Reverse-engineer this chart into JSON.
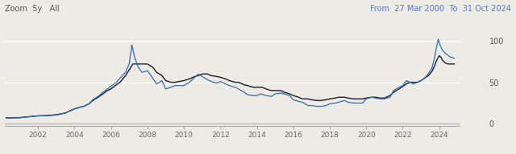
{
  "title_left": "Zoom  5y   All",
  "title_right": "From  27 Mar 2000  To  31 Oct 2024",
  "background_color": "#eeebe5",
  "plot_bg_color": "#eeebe5",
  "line_spot_color": "#2b6cb8",
  "line_longterm_color": "#1a1a2e",
  "ylabel_values": [
    0,
    50,
    100
  ],
  "xlim_years": [
    2000.2,
    2025.1
  ],
  "ylim": [
    -3,
    112
  ],
  "xtick_years": [
    2002,
    2004,
    2006,
    2008,
    2010,
    2012,
    2014,
    2016,
    2018,
    2020,
    2022,
    2024
  ],
  "spot_data": [
    [
      2000.25,
      7
    ],
    [
      2001.0,
      7.2
    ],
    [
      2001.5,
      8.5
    ],
    [
      2002.0,
      9.5
    ],
    [
      2002.5,
      9.8
    ],
    [
      2003.0,
      10.5
    ],
    [
      2003.5,
      13
    ],
    [
      2004.0,
      18
    ],
    [
      2004.3,
      20
    ],
    [
      2004.5,
      21
    ],
    [
      2004.8,
      24
    ],
    [
      2005.0,
      29
    ],
    [
      2005.3,
      33
    ],
    [
      2005.5,
      37
    ],
    [
      2005.8,
      42
    ],
    [
      2006.0,
      45
    ],
    [
      2006.3,
      50
    ],
    [
      2006.5,
      55
    ],
    [
      2006.8,
      62
    ],
    [
      2007.0,
      72
    ],
    [
      2007.15,
      95
    ],
    [
      2007.3,
      80
    ],
    [
      2007.5,
      68
    ],
    [
      2007.7,
      62
    ],
    [
      2008.0,
      64
    ],
    [
      2008.2,
      58
    ],
    [
      2008.5,
      48
    ],
    [
      2008.8,
      52
    ],
    [
      2009.0,
      42
    ],
    [
      2009.3,
      44
    ],
    [
      2009.5,
      46
    ],
    [
      2010.0,
      46
    ],
    [
      2010.3,
      50
    ],
    [
      2010.6,
      56
    ],
    [
      2010.8,
      60
    ],
    [
      2011.0,
      57
    ],
    [
      2011.3,
      53
    ],
    [
      2011.5,
      51
    ],
    [
      2011.8,
      49
    ],
    [
      2012.0,
      51
    ],
    [
      2012.3,
      48
    ],
    [
      2012.5,
      46
    ],
    [
      2012.8,
      44
    ],
    [
      2013.0,
      42
    ],
    [
      2013.3,
      38
    ],
    [
      2013.5,
      35
    ],
    [
      2013.8,
      34
    ],
    [
      2014.0,
      34
    ],
    [
      2014.2,
      36
    ],
    [
      2014.5,
      34
    ],
    [
      2014.8,
      33
    ],
    [
      2015.0,
      36
    ],
    [
      2015.3,
      37
    ],
    [
      2015.5,
      36
    ],
    [
      2015.8,
      34
    ],
    [
      2016.0,
      29
    ],
    [
      2016.3,
      27
    ],
    [
      2016.5,
      26
    ],
    [
      2016.8,
      22
    ],
    [
      2017.0,
      22
    ],
    [
      2017.3,
      21
    ],
    [
      2017.5,
      21
    ],
    [
      2017.8,
      22
    ],
    [
      2018.0,
      24
    ],
    [
      2018.3,
      25
    ],
    [
      2018.5,
      26
    ],
    [
      2018.8,
      28
    ],
    [
      2019.0,
      26
    ],
    [
      2019.3,
      25
    ],
    [
      2019.5,
      25
    ],
    [
      2019.8,
      25
    ],
    [
      2020.0,
      30
    ],
    [
      2020.3,
      32
    ],
    [
      2020.5,
      31
    ],
    [
      2020.8,
      30
    ],
    [
      2021.0,
      30
    ],
    [
      2021.3,
      32
    ],
    [
      2021.5,
      40
    ],
    [
      2021.8,
      44
    ],
    [
      2022.0,
      46
    ],
    [
      2022.2,
      52
    ],
    [
      2022.4,
      50
    ],
    [
      2022.6,
      48
    ],
    [
      2022.8,
      50
    ],
    [
      2023.0,
      52
    ],
    [
      2023.2,
      55
    ],
    [
      2023.4,
      60
    ],
    [
      2023.6,
      67
    ],
    [
      2023.75,
      80
    ],
    [
      2023.85,
      92
    ],
    [
      2023.95,
      102
    ],
    [
      2024.0,
      98
    ],
    [
      2024.1,
      92
    ],
    [
      2024.2,
      88
    ],
    [
      2024.35,
      85
    ],
    [
      2024.5,
      82
    ],
    [
      2024.65,
      80
    ],
    [
      2024.83,
      79
    ]
  ],
  "longterm_data": [
    [
      2000.25,
      7
    ],
    [
      2001.0,
      7.5
    ],
    [
      2001.5,
      8.5
    ],
    [
      2002.0,
      9.5
    ],
    [
      2002.5,
      10
    ],
    [
      2003.0,
      11
    ],
    [
      2003.5,
      13
    ],
    [
      2004.0,
      18
    ],
    [
      2004.3,
      20
    ],
    [
      2004.5,
      21
    ],
    [
      2004.8,
      24
    ],
    [
      2005.0,
      28
    ],
    [
      2005.3,
      32
    ],
    [
      2005.5,
      35
    ],
    [
      2005.8,
      40
    ],
    [
      2006.0,
      42
    ],
    [
      2006.3,
      47
    ],
    [
      2006.5,
      50
    ],
    [
      2006.8,
      58
    ],
    [
      2007.0,
      65
    ],
    [
      2007.2,
      72
    ],
    [
      2007.5,
      72
    ],
    [
      2007.7,
      72
    ],
    [
      2008.0,
      72
    ],
    [
      2008.3,
      68
    ],
    [
      2008.5,
      62
    ],
    [
      2008.8,
      58
    ],
    [
      2009.0,
      52
    ],
    [
      2009.3,
      50
    ],
    [
      2009.5,
      50
    ],
    [
      2010.0,
      52
    ],
    [
      2010.3,
      54
    ],
    [
      2010.6,
      57
    ],
    [
      2010.8,
      58
    ],
    [
      2011.0,
      60
    ],
    [
      2011.3,
      60
    ],
    [
      2011.5,
      58
    ],
    [
      2011.8,
      57
    ],
    [
      2012.0,
      56
    ],
    [
      2012.3,
      54
    ],
    [
      2012.5,
      52
    ],
    [
      2012.8,
      50
    ],
    [
      2013.0,
      50
    ],
    [
      2013.3,
      47
    ],
    [
      2013.5,
      46
    ],
    [
      2013.8,
      44
    ],
    [
      2014.0,
      44
    ],
    [
      2014.3,
      44
    ],
    [
      2014.5,
      42
    ],
    [
      2014.8,
      40
    ],
    [
      2015.0,
      40
    ],
    [
      2015.3,
      40
    ],
    [
      2015.5,
      38
    ],
    [
      2015.8,
      36
    ],
    [
      2016.0,
      34
    ],
    [
      2016.3,
      32
    ],
    [
      2016.5,
      30
    ],
    [
      2016.8,
      30
    ],
    [
      2017.0,
      29
    ],
    [
      2017.3,
      28
    ],
    [
      2017.5,
      28
    ],
    [
      2017.8,
      29
    ],
    [
      2018.0,
      30
    ],
    [
      2018.3,
      31
    ],
    [
      2018.5,
      32
    ],
    [
      2018.8,
      32
    ],
    [
      2019.0,
      31
    ],
    [
      2019.3,
      30
    ],
    [
      2019.5,
      30
    ],
    [
      2019.8,
      30
    ],
    [
      2020.0,
      31
    ],
    [
      2020.3,
      32
    ],
    [
      2020.5,
      32
    ],
    [
      2020.8,
      31
    ],
    [
      2021.0,
      31
    ],
    [
      2021.3,
      34
    ],
    [
      2021.5,
      38
    ],
    [
      2021.8,
      42
    ],
    [
      2022.0,
      45
    ],
    [
      2022.2,
      48
    ],
    [
      2022.4,
      50
    ],
    [
      2022.6,
      50
    ],
    [
      2022.8,
      50
    ],
    [
      2023.0,
      52
    ],
    [
      2023.2,
      55
    ],
    [
      2023.4,
      58
    ],
    [
      2023.6,
      63
    ],
    [
      2023.75,
      70
    ],
    [
      2023.85,
      76
    ],
    [
      2023.95,
      80
    ],
    [
      2024.0,
      82
    ],
    [
      2024.1,
      80
    ],
    [
      2024.2,
      76
    ],
    [
      2024.35,
      73
    ],
    [
      2024.5,
      72
    ],
    [
      2024.65,
      72
    ],
    [
      2024.83,
      72
    ]
  ]
}
